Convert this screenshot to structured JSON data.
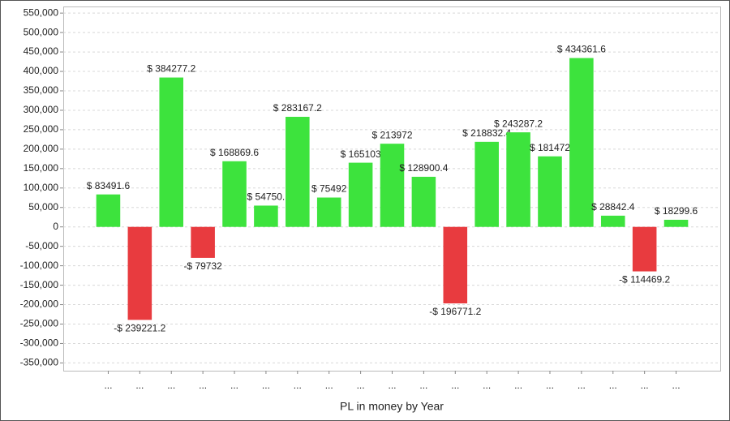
{
  "chart_data": {
    "type": "bar",
    "x_label": "PL in money by Year",
    "categories": [
      "...",
      "...",
      "...",
      "...",
      "...",
      "...",
      "...",
      "...",
      "...",
      "...",
      "...",
      "...",
      "...",
      "...",
      "...",
      "...",
      "...",
      "...",
      "..."
    ],
    "values": [
      83491.6,
      -239221.2,
      384277.2,
      -79732,
      168869.6,
      54750,
      283167.2,
      75492,
      165103,
      213972,
      128900.4,
      -196771.2,
      218832.4,
      243287.2,
      181472,
      434361.6,
      28842.4,
      -114469.2,
      18299.6
    ],
    "value_labels": [
      "$ 83491.6",
      "-$ 239221.2",
      "$ 384277.2",
      "-$ 79732",
      "$ 168869.6",
      "$ 54750.",
      "$ 283167.2",
      "$ 75492",
      "$ 165103",
      "$ 213972",
      "$ 128900.4",
      "-$ 196771.2",
      "$ 218832.4",
      "$ 243287.2",
      "$ 181472",
      "$ 434361.6",
      "$ 28842.4",
      "-$ 114469.2",
      "$ 18299.6"
    ],
    "positive_color": "#3de33d",
    "negative_color": "#e83b3f",
    "ylim": [
      -370000,
      567000
    ],
    "yticks": [
      {
        "value": -350000,
        "label": "-350,000"
      },
      {
        "value": -300000,
        "label": "-300,000"
      },
      {
        "value": -250000,
        "label": "-250,000"
      },
      {
        "value": -200000,
        "label": "-200,000"
      },
      {
        "value": -150000,
        "label": "-150,000"
      },
      {
        "value": -100000,
        "label": "-100,000"
      },
      {
        "value": -50000,
        "label": "-50,000"
      },
      0,
      {
        "value": 50000,
        "label": "50,000"
      },
      {
        "value": 100000,
        "label": "100,000"
      },
      {
        "value": 150000,
        "label": "150,000"
      },
      {
        "value": 200000,
        "label": "200,000"
      },
      {
        "value": 250000,
        "label": "250,000"
      },
      {
        "value": 300000,
        "label": "300,000"
      },
      {
        "value": 350000,
        "label": "350,000"
      },
      {
        "value": 400000,
        "label": "400,000"
      },
      {
        "value": 450000,
        "label": "450,000"
      },
      {
        "value": 500000,
        "label": "500,000"
      },
      {
        "value": 550000,
        "label": "550,000"
      }
    ],
    "grid": true
  }
}
